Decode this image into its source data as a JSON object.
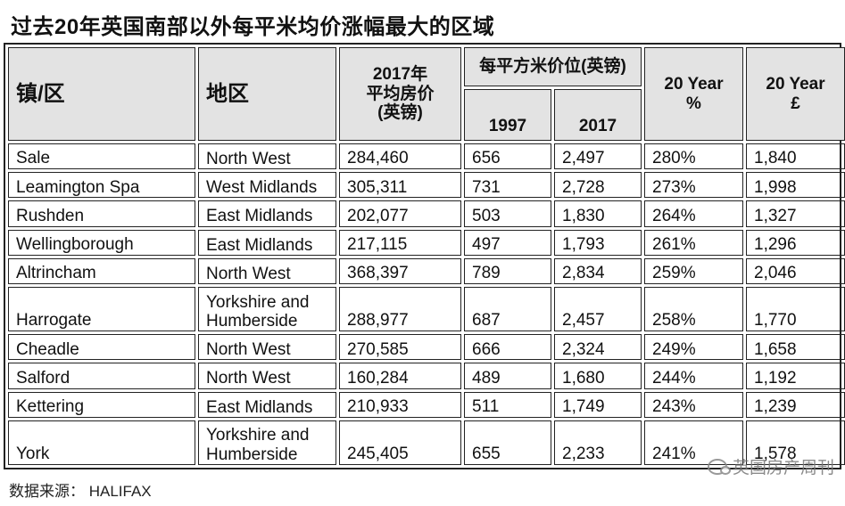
{
  "title": "过去20年英国南部以外每平米均价涨幅最大的区域",
  "headers": {
    "town": "镇/区",
    "region": "地区",
    "avg_price": "2017年\n平均房价\n(英镑)",
    "per_sqm_group": "每平方米价位(英镑)",
    "y1997": "1997",
    "y2017": "2017",
    "pct": "20 Year\n%",
    "gbp": "20  Year\n£"
  },
  "rows": [
    {
      "town": "Sale",
      "region": "North West",
      "avg": "284,460",
      "p1997": "656",
      "p2017": "2,497",
      "pct": "280%",
      "gbp": "1,840"
    },
    {
      "town": "Leamington Spa",
      "region": "West Midlands",
      "avg": "305,311",
      "p1997": "731",
      "p2017": "2,728",
      "pct": "273%",
      "gbp": "1,998"
    },
    {
      "town": "Rushden",
      "region": "East Midlands",
      "avg": "202,077",
      "p1997": "503",
      "p2017": "1,830",
      "pct": "264%",
      "gbp": "1,327"
    },
    {
      "town": "Wellingborough",
      "region": "East Midlands",
      "avg": "217,115",
      "p1997": "497",
      "p2017": "1,793",
      "pct": "261%",
      "gbp": "1,296"
    },
    {
      "town": "Altrincham",
      "region": "North West",
      "avg": "368,397",
      "p1997": "789",
      "p2017": "2,834",
      "pct": "259%",
      "gbp": "2,046"
    },
    {
      "town": "Harrogate",
      "region": "Yorkshire and Humberside",
      "avg": "288,977",
      "p1997": "687",
      "p2017": "2,457",
      "pct": "258%",
      "gbp": "1,770"
    },
    {
      "town": "Cheadle",
      "region": "North West",
      "avg": "270,585",
      "p1997": "666",
      "p2017": "2,324",
      "pct": "249%",
      "gbp": "1,658"
    },
    {
      "town": "Salford",
      "region": "North West",
      "avg": "160,284",
      "p1997": "489",
      "p2017": "1,680",
      "pct": "244%",
      "gbp": "1,192"
    },
    {
      "town": "Kettering",
      "region": "East Midlands",
      "avg": "210,933",
      "p1997": "511",
      "p2017": "1,749",
      "pct": "243%",
      "gbp": "1,239"
    },
    {
      "town": "York",
      "region": "Yorkshire and Humberside",
      "avg": "245,405",
      "p1997": "655",
      "p2017": "2,233",
      "pct": "241%",
      "gbp": "1,578"
    }
  ],
  "source": "数据来源： HALIFAX",
  "watermark": "英国房产周刊"
}
